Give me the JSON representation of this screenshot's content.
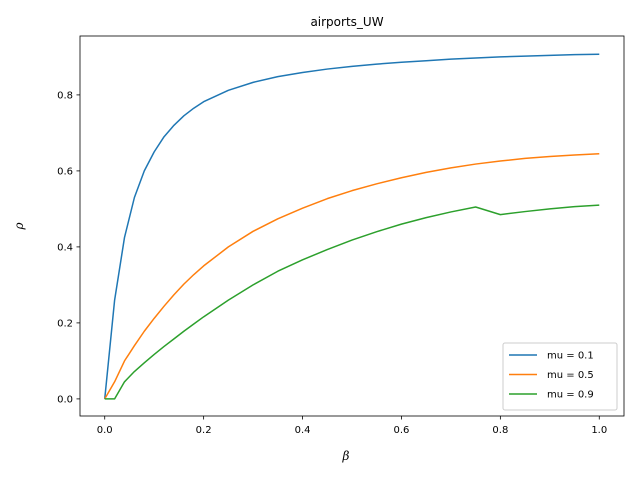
{
  "chart_data": {
    "type": "line",
    "title": "airports_UW",
    "xlabel": "β",
    "ylabel": "ρ",
    "xlim": [
      -0.05,
      1.05
    ],
    "ylim": [
      -0.045,
      0.955
    ],
    "xticks": [
      0.0,
      0.2,
      0.4,
      0.6,
      0.8,
      1.0
    ],
    "xtick_labels": [
      "0.0",
      "0.2",
      "0.4",
      "0.6",
      "0.8",
      "1.0"
    ],
    "yticks": [
      0.0,
      0.2,
      0.4,
      0.6,
      0.8
    ],
    "ytick_labels": [
      "0.0",
      "0.2",
      "0.4",
      "0.6",
      "0.8"
    ],
    "grid": false,
    "legend_position": "lower-right",
    "x": [
      0.0,
      0.02,
      0.04,
      0.06,
      0.08,
      0.1,
      0.12,
      0.14,
      0.16,
      0.18,
      0.2,
      0.25,
      0.3,
      0.35,
      0.4,
      0.45,
      0.5,
      0.55,
      0.6,
      0.65,
      0.7,
      0.75,
      0.8,
      0.85,
      0.9,
      0.95,
      1.0
    ],
    "series": [
      {
        "name": "mu = 0.1",
        "color": "#1f77b4",
        "values": [
          0.0,
          0.26,
          0.425,
          0.53,
          0.6,
          0.65,
          0.69,
          0.72,
          0.745,
          0.765,
          0.782,
          0.812,
          0.833,
          0.848,
          0.859,
          0.868,
          0.875,
          0.881,
          0.886,
          0.89,
          0.894,
          0.897,
          0.9,
          0.902,
          0.904,
          0.906,
          0.907
        ]
      },
      {
        "name": "mu = 0.5",
        "color": "#ff7f0e",
        "values": [
          0.0,
          0.045,
          0.1,
          0.14,
          0.178,
          0.212,
          0.244,
          0.274,
          0.302,
          0.327,
          0.35,
          0.4,
          0.441,
          0.474,
          0.502,
          0.527,
          0.548,
          0.566,
          0.582,
          0.596,
          0.608,
          0.618,
          0.626,
          0.633,
          0.638,
          0.642,
          0.645
        ]
      },
      {
        "name": "mu = 0.9",
        "color": "#2ca02c",
        "values": [
          0.0,
          0.0,
          0.045,
          0.072,
          0.095,
          0.117,
          0.138,
          0.158,
          0.178,
          0.197,
          0.216,
          0.26,
          0.3,
          0.336,
          0.366,
          0.393,
          0.418,
          0.44,
          0.46,
          0.477,
          0.492,
          0.505,
          0.485,
          0.493,
          0.5,
          0.506,
          0.51
        ]
      }
    ]
  }
}
